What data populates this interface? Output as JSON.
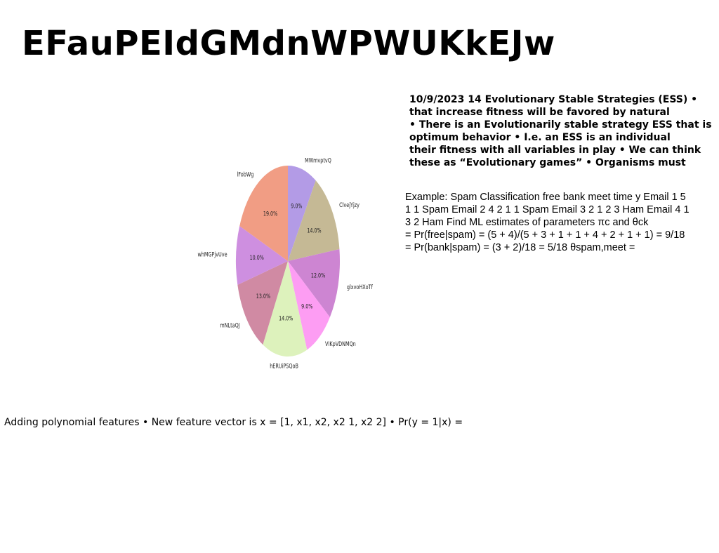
{
  "title": "EFauPEIdGMdnWPWUKkEJw",
  "ess_lines": [
    "10/9/2023 14 Evolutionary Stable Strategies (ESS) •",
    "that increase fitness will be favored by natural",
    "• There is an Evolutionarily stable strategy ESS that is",
    "optimum behavior • I.e. an ESS is an individual",
    "their fitness with all variables in play • We can think",
    "these as “Evolutionary games” • Organisms must"
  ],
  "spam_lines": [
    "Example: Spam Classification free bank meet time y Email 1 5",
    "1 1 Spam Email 2 4 2 1 1 Spam Email 3 2 1 2 3 Ham Email 4 1",
    "3 2 Ham Find ML estimates of parameters πc and θck",
    "= Pr(free|spam) = (5 + 4)/(5 + 3 + 1 + 1 + 4 + 2 + 1 + 1) = 9/18",
    "= Pr(bank|spam) = (3 + 2)/18 = 5/18 θspam,meet ="
  ],
  "poly_text": "Adding polynomial features • New feature vector is x = [1, x1, x2, x2 1, x2 2] • Pr(y = 1|x) =",
  "chart_data": {
    "type": "pie",
    "title": "",
    "start_angle_deg": 90,
    "direction": "clockwise",
    "categories": [
      "MWmvptvQ",
      "ClvejYjzy",
      "glxvoHXoTf",
      "VIKpVDNMQn",
      "hERUiPSQoB",
      "mNLtaQJ",
      "whMGPjvUve",
      "lFobWg"
    ],
    "values": [
      9.0,
      14.0,
      12.0,
      9.0,
      14.0,
      13.0,
      10.0,
      19.0
    ],
    "labels": [
      "9.0%",
      "14.0%",
      "12.0%",
      "9.0%",
      "14.0%",
      "13.0%",
      "10.0%",
      "19.0%"
    ],
    "colors": [
      "#b39be6",
      "#c5b995",
      "#cd85d2",
      "#fd9df3",
      "#ddf2bc",
      "#d08aa3",
      "#ce8fe0",
      "#f19d84"
    ]
  }
}
